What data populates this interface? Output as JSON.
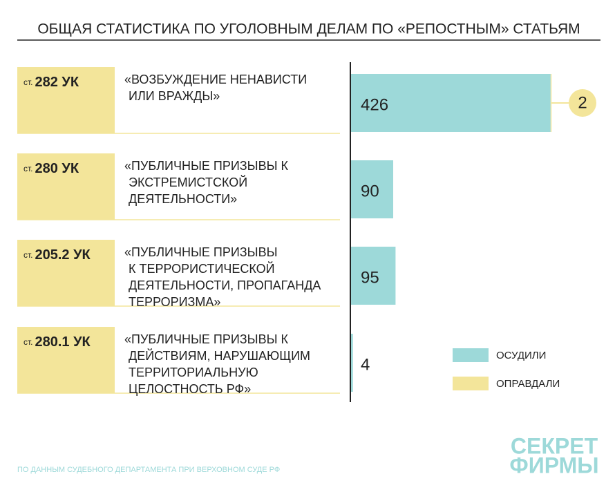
{
  "chart_data": {
    "type": "bar",
    "title": "ОБЩАЯ СТАТИСТИКА ПО УГОЛОВНЫМ ДЕЛАМ ПО «РЕПОСТНЫМ» СТАТЬЯМ",
    "articles": [
      {
        "prefix": "ст.",
        "code": "282 УК"
      },
      {
        "prefix": "ст.",
        "code": "280 УК"
      },
      {
        "prefix": "ст.",
        "code": "205.2 УК"
      },
      {
        "prefix": "ст.",
        "code": "280.1 УК"
      }
    ],
    "categories": [
      [
        "«ВОЗБУЖДЕНИЕ НЕНАВИСТИ",
        "ИЛИ ВРАЖДЫ»"
      ],
      [
        "«ПУБЛИЧНЫЕ ПРИЗЫВЫ К",
        "ЭКСТРЕМИСТСКОЙ",
        "ДЕЯТЕЛЬНОСТИ»"
      ],
      [
        "«ПУБЛИЧНЫЕ ПРИЗЫВЫ",
        "К ТЕРРОРИСТИЧЕСКОЙ",
        "ДЕЯТЕЛЬНОСТИ, ПРОПАГАНДА",
        "ТЕРРОРИЗМА»"
      ],
      [
        "«ПУБЛИЧНЫЕ ПРИЗЫВЫ К",
        "ДЕЙСТВИЯМ, НАРУШАЮЩИМ",
        "ТЕРРИТОРИАЛЬНУЮ",
        "ЦЕЛОСТНОСТЬ РФ»"
      ]
    ],
    "series": [
      {
        "name": "ОСУДИЛИ",
        "color": "#9dd9d9",
        "values": [
          426,
          90,
          95,
          4
        ]
      },
      {
        "name": "ОПРАВДАЛИ",
        "color": "#f3e59a",
        "values": [
          2,
          0,
          0,
          0
        ]
      }
    ],
    "stacked": true,
    "source": "ПО ДАННЫМ СУДЕБНОГО ДЕПАРТАМЕНТА ПРИ ВЕРХОВНОМ СУДЕ РФ",
    "logo": [
      "СЕКРЕТ",
      "ФИРМЫ"
    ]
  }
}
